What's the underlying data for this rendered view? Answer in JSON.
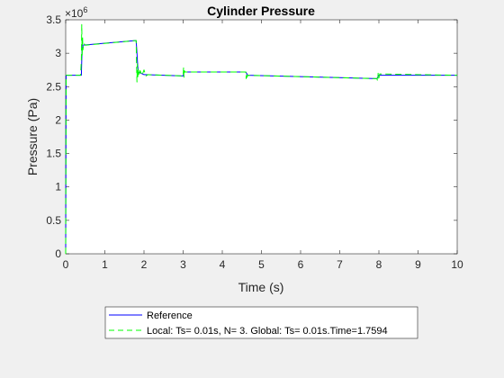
{
  "chart_data": {
    "type": "line",
    "title": "Cylinder Pressure",
    "xlabel": "Time (s)",
    "ylabel": "Pressure (Pa)",
    "y_exponent_base": "×10",
    "y_exponent_power": "6",
    "xlim": [
      0,
      10
    ],
    "ylim": [
      0,
      3.5
    ],
    "xticks": [
      0,
      1,
      2,
      3,
      4,
      5,
      6,
      7,
      8,
      9,
      10
    ],
    "xtick_labels": [
      "0",
      "1",
      "2",
      "3",
      "4",
      "5",
      "6",
      "7",
      "8",
      "9",
      "10"
    ],
    "yticks": [
      0,
      0.5,
      1,
      1.5,
      2,
      2.5,
      3,
      3.5
    ],
    "ytick_labels": [
      "0",
      "0.5",
      "1",
      "1.5",
      "2",
      "2.5",
      "3",
      "3.5"
    ],
    "grid": false,
    "legend_position": "bottom-outside",
    "series": [
      {
        "name": "Reference",
        "color": "#0000ff",
        "style": "solid",
        "x": [
          0,
          0.01,
          0.04,
          0.4,
          0.42,
          1.8,
          1.85,
          2.0,
          3.0,
          3.02,
          4.6,
          4.65,
          7.95,
          8.0,
          10
        ],
        "y": [
          0,
          2.67,
          2.67,
          2.67,
          3.12,
          3.19,
          2.72,
          2.68,
          2.66,
          2.72,
          2.72,
          2.67,
          2.62,
          2.67,
          2.67
        ]
      },
      {
        "name": "Local: Ts= 0.01s, N= 3. Global: Ts= 0.01s.Time=1.7594",
        "color": "#00ff00",
        "style": "dashed",
        "x": [
          0,
          0.01,
          0.04,
          0.38,
          0.4,
          0.41,
          0.42,
          0.43,
          0.44,
          0.46,
          0.5,
          1.8,
          1.81,
          1.82,
          1.83,
          1.84,
          1.85,
          1.87,
          1.9,
          1.95,
          2.0,
          2.05,
          2.1,
          3.0,
          3.01,
          3.02,
          3.03,
          3.05,
          4.6,
          4.61,
          4.62,
          4.63,
          4.65,
          7.95,
          7.97,
          7.98,
          8.0,
          8.02,
          10
        ],
        "y": [
          0,
          2.67,
          2.67,
          2.67,
          2.9,
          3.43,
          2.95,
          3.25,
          3.05,
          3.15,
          3.12,
          3.19,
          2.8,
          2.57,
          2.84,
          2.62,
          2.78,
          2.66,
          2.74,
          2.67,
          2.75,
          2.66,
          2.68,
          2.66,
          2.78,
          2.64,
          2.74,
          2.72,
          2.72,
          2.62,
          2.7,
          2.64,
          2.67,
          2.62,
          2.58,
          2.7,
          2.63,
          2.69,
          2.67
        ]
      }
    ]
  }
}
